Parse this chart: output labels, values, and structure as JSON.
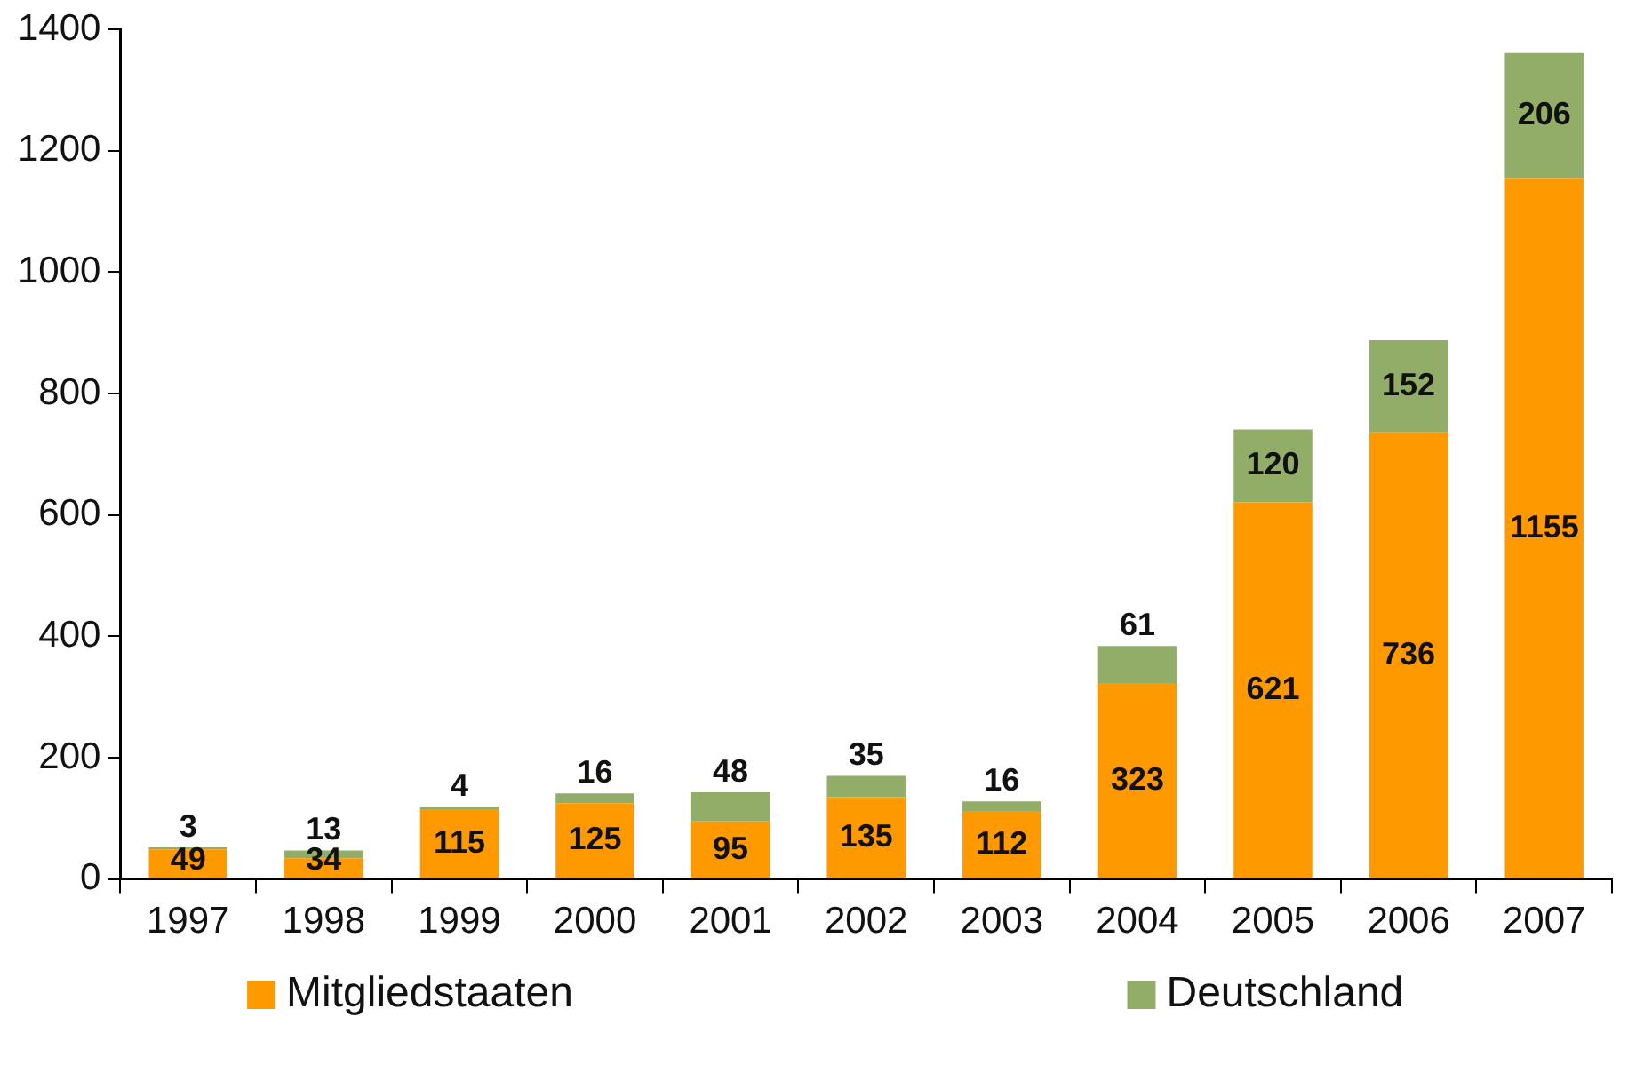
{
  "chart_data": {
    "type": "bar",
    "stacked": true,
    "categories": [
      "1997",
      "1998",
      "1999",
      "2000",
      "2001",
      "2002",
      "2003",
      "2004",
      "2005",
      "2006",
      "2007"
    ],
    "series": [
      {
        "name": "Mitgliedstaaten",
        "color": "#ff9900",
        "values": [
          49,
          34,
          115,
          125,
          95,
          135,
          112,
          323,
          621,
          736,
          1155
        ]
      },
      {
        "name": "Deutschland",
        "color": "#92ad68",
        "values": [
          3,
          13,
          4,
          16,
          48,
          35,
          16,
          61,
          120,
          152,
          206
        ]
      }
    ],
    "ylim": [
      0,
      1400
    ],
    "yticks": [
      0,
      200,
      400,
      600,
      800,
      1000,
      1200,
      1400
    ],
    "legend": "bottom",
    "data_labels": true
  }
}
